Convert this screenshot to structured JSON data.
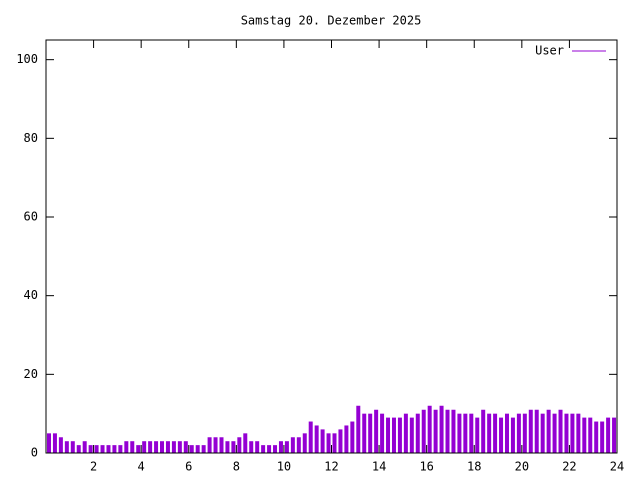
{
  "chart_data": {
    "type": "impulse",
    "title": "Samstag 20. Dezember 2025",
    "x": [
      0,
      0.25,
      0.5,
      0.75,
      1,
      1.25,
      1.5,
      1.75,
      2,
      2.25,
      2.5,
      2.75,
      3,
      3.25,
      3.5,
      3.75,
      4,
      4.25,
      4.5,
      4.75,
      5,
      5.25,
      5.5,
      5.75,
      6,
      6.25,
      6.5,
      6.75,
      7,
      7.25,
      7.5,
      7.75,
      8,
      8.25,
      8.5,
      8.75,
      9,
      9.25,
      9.5,
      9.75,
      10,
      10.25,
      10.5,
      10.75,
      11,
      11.25,
      11.5,
      11.75,
      12,
      12.25,
      12.5,
      12.75,
      13,
      13.25,
      13.5,
      13.75,
      14,
      14.25,
      14.5,
      14.75,
      15,
      15.25,
      15.5,
      15.75,
      16,
      16.25,
      16.5,
      16.75,
      17,
      17.25,
      17.5,
      17.75,
      18,
      18.25,
      18.5,
      18.75,
      19,
      19.25,
      19.5,
      19.75,
      20,
      20.25,
      20.5,
      20.75,
      21,
      21.25,
      21.5,
      21.75,
      22,
      22.25,
      22.5,
      22.75,
      23,
      23.25,
      23.5,
      23.75
    ],
    "series": [
      {
        "name": "User",
        "color": "#9400d3",
        "values": [
          5,
          5,
          4,
          3,
          3,
          2,
          3,
          2,
          2,
          2,
          2,
          2,
          2,
          3,
          3,
          2,
          3,
          3,
          3,
          3,
          3,
          3,
          3,
          3,
          2,
          2,
          2,
          4,
          4,
          4,
          3,
          3,
          4,
          5,
          3,
          3,
          2,
          2,
          2,
          3,
          3,
          4,
          4,
          5,
          8,
          7,
          6,
          5,
          5,
          6,
          7,
          8,
          12,
          10,
          10,
          11,
          10,
          9,
          9,
          9,
          10,
          9,
          10,
          11,
          12,
          11,
          12,
          11,
          11,
          10,
          10,
          10,
          9,
          11,
          10,
          10,
          9,
          10,
          9,
          10,
          10,
          11,
          11,
          10,
          11,
          10,
          11,
          10,
          10,
          10,
          9,
          9,
          8,
          8,
          9,
          9
        ]
      }
    ],
    "xlim": [
      0,
      24
    ],
    "xticks": [
      2,
      4,
      6,
      8,
      10,
      12,
      14,
      16,
      18,
      20,
      22,
      24
    ],
    "ylim": [
      0,
      105
    ],
    "yticks": [
      0,
      20,
      40,
      60,
      80,
      100
    ],
    "legend": "top-right"
  }
}
